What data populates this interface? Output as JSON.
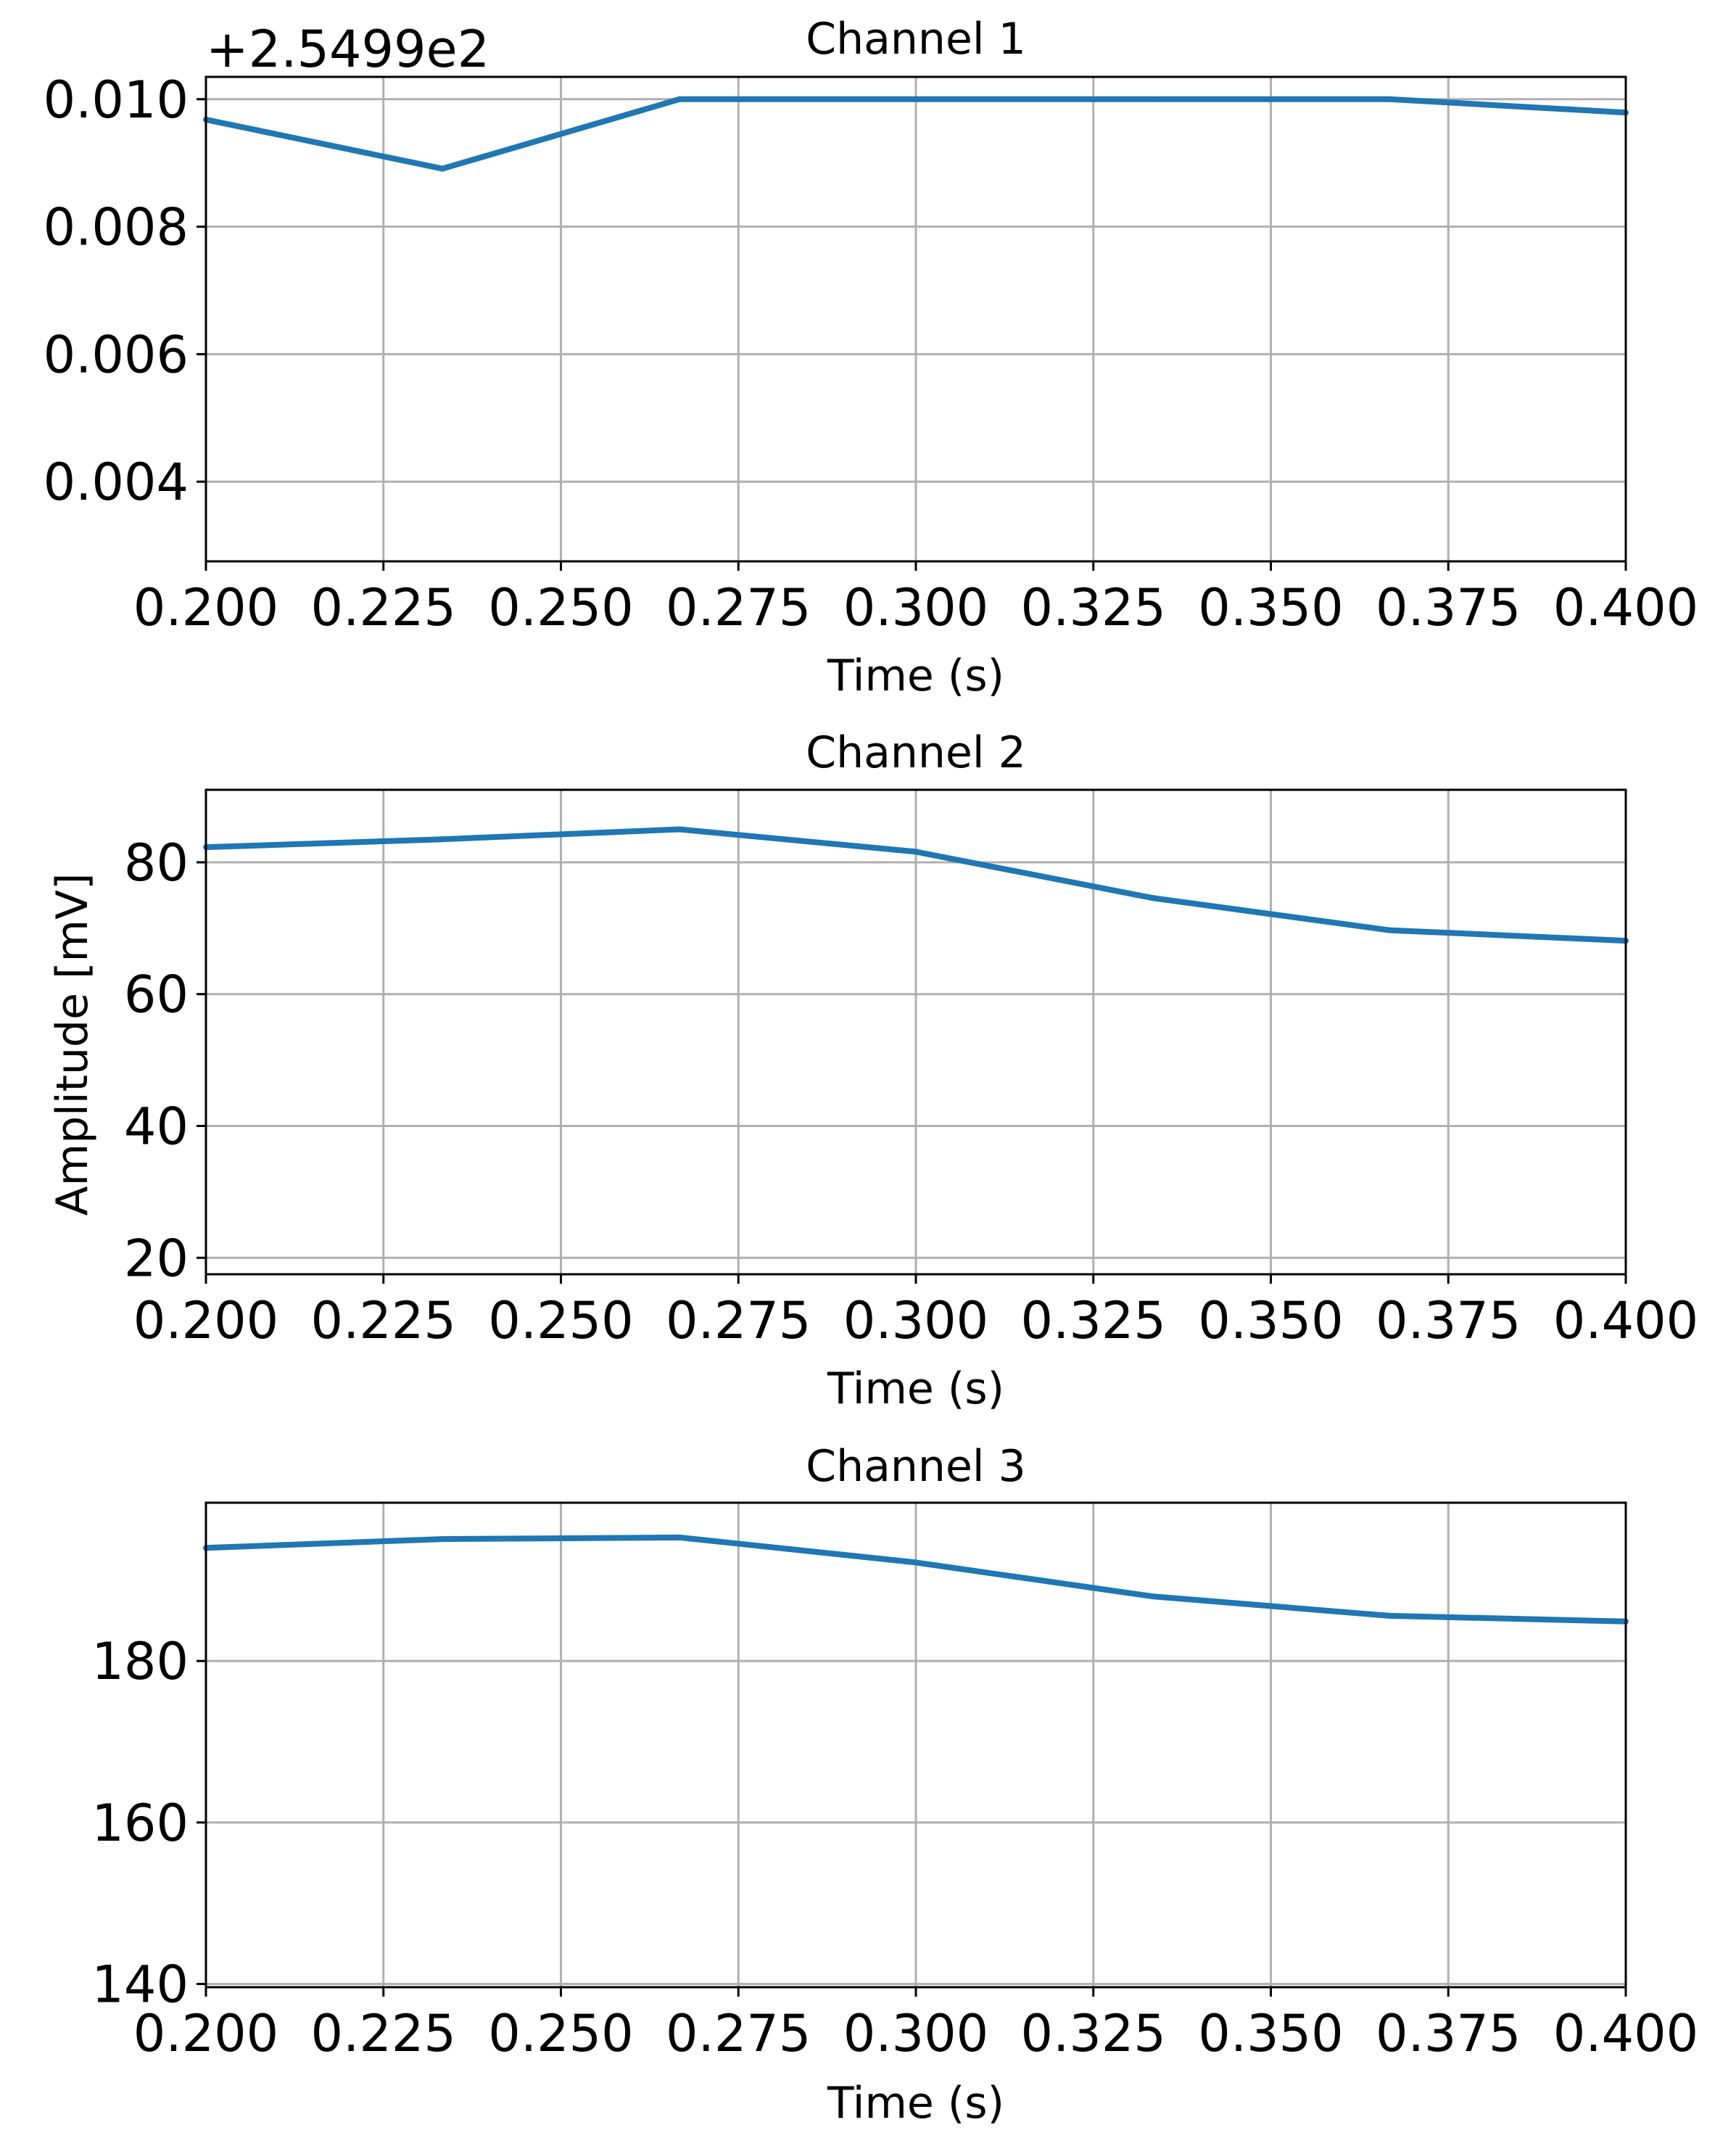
{
  "chart_data": [
    {
      "type": "line",
      "title": "Channel 1",
      "xlabel": "Time (s)",
      "ylabel": "",
      "offset_label": "+2.5499e2",
      "offset_value": 254.99,
      "xlim": [
        0.2,
        0.4
      ],
      "ylim": [
        0.00275,
        0.01035
      ],
      "xticks": [
        0.2,
        0.225,
        0.25,
        0.275,
        0.3,
        0.325,
        0.35,
        0.375,
        0.4
      ],
      "xtick_labels": [
        "0.200",
        "0.225",
        "0.250",
        "0.275",
        "0.300",
        "0.325",
        "0.350",
        "0.375",
        "0.400"
      ],
      "yticks": [
        0.004,
        0.006,
        0.008,
        0.01
      ],
      "ytick_labels": [
        "0.004",
        "0.006",
        "0.008",
        "0.010"
      ],
      "grid": true,
      "color": "#1f77b4",
      "x": [
        0.2,
        0.2333,
        0.2667,
        0.3,
        0.3333,
        0.3667,
        0.4
      ],
      "y": [
        0.00968,
        0.00891,
        0.01,
        0.01,
        0.01,
        0.01,
        0.00979
      ]
    },
    {
      "type": "line",
      "title": "Channel 2",
      "xlabel": "Time (s)",
      "ylabel": "Amplitude [mV]",
      "xlim": [
        0.2,
        0.4
      ],
      "ylim": [
        17.5,
        91
      ],
      "xticks": [
        0.2,
        0.225,
        0.25,
        0.275,
        0.3,
        0.325,
        0.35,
        0.375,
        0.4
      ],
      "xtick_labels": [
        "0.200",
        "0.225",
        "0.250",
        "0.275",
        "0.300",
        "0.325",
        "0.350",
        "0.375",
        "0.400"
      ],
      "yticks": [
        20,
        40,
        60,
        80
      ],
      "ytick_labels": [
        "20",
        "40",
        "60",
        "80"
      ],
      "grid": true,
      "color": "#1f77b4",
      "x": [
        0.2,
        0.2333,
        0.2667,
        0.3,
        0.3333,
        0.3667,
        0.4
      ],
      "y": [
        82.3,
        83.5,
        85.0,
        81.6,
        74.6,
        69.7,
        68.1
      ]
    },
    {
      "type": "line",
      "title": "Channel 3",
      "xlabel": "Time (s)",
      "ylabel": "",
      "xlim": [
        0.2,
        0.4
      ],
      "ylim": [
        139.6,
        199.6
      ],
      "xticks": [
        0.2,
        0.225,
        0.25,
        0.275,
        0.3,
        0.325,
        0.35,
        0.375,
        0.4
      ],
      "xtick_labels": [
        "0.200",
        "0.225",
        "0.250",
        "0.275",
        "0.300",
        "0.325",
        "0.350",
        "0.375",
        "0.400"
      ],
      "yticks": [
        140,
        160,
        180
      ],
      "ytick_labels": [
        "140",
        "160",
        "180"
      ],
      "grid": true,
      "color": "#1f77b4",
      "x": [
        0.2,
        0.2333,
        0.2667,
        0.3,
        0.3333,
        0.3667,
        0.4
      ],
      "y": [
        194.0,
        195.1,
        195.3,
        192.2,
        188.0,
        185.6,
        184.9
      ]
    }
  ]
}
